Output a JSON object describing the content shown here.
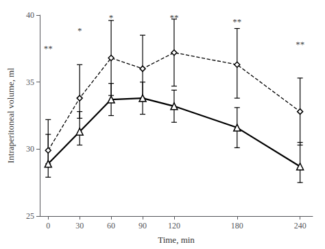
{
  "chart_data": {
    "type": "line",
    "xlabel": "Time, min",
    "ylabel": "Intraperitoneal volume, ml",
    "x": [
      0,
      30,
      60,
      90,
      120,
      180,
      240
    ],
    "series": [
      {
        "color": "black",
        "line_style": "dashed",
        "marker": "diamond",
        "values": [
          29.9,
          33.8,
          36.8,
          36.0,
          37.2,
          36.3,
          32.8
        ],
        "yerr_lo": [
          1.0,
          1.5,
          2.8,
          2.2,
          2.5,
          2.5,
          2.5
        ],
        "yerr_hi": [
          2.3,
          2.5,
          2.8,
          2.5,
          2.5,
          2.7,
          2.5
        ]
      },
      {
        "color": "black",
        "line_style": "solid",
        "marker": "triangle",
        "values": [
          28.9,
          31.3,
          33.7,
          33.8,
          33.2,
          31.6,
          28.7
        ],
        "yerr_lo": [
          1.0,
          1.0,
          1.2,
          1.2,
          1.2,
          1.5,
          1.2
        ],
        "yerr_hi": [
          2.2,
          1.5,
          1.2,
          1.2,
          1.2,
          1.5,
          1.8
        ]
      }
    ],
    "annotations": [
      {
        "x": 0,
        "y": 37.2,
        "text": "**"
      },
      {
        "x": 30,
        "y": 38.5,
        "text": "*"
      },
      {
        "x": 60,
        "y": 39.5,
        "text": "*"
      },
      {
        "x": 120,
        "y": 39.5,
        "text": "**"
      },
      {
        "x": 180,
        "y": 39.2,
        "text": "**"
      },
      {
        "x": 240,
        "y": 37.5,
        "text": "**"
      }
    ],
    "xlim": [
      -8,
      252
    ],
    "ylim": [
      25,
      40
    ],
    "xticks": [
      0,
      30,
      60,
      90,
      120,
      180,
      240
    ],
    "yticks": [
      25,
      30,
      35,
      40
    ],
    "grid": false
  }
}
